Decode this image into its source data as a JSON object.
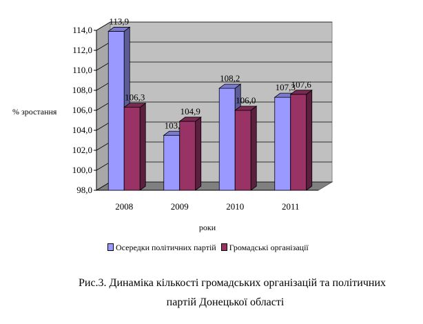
{
  "chart_data": {
    "type": "bar",
    "categories": [
      "2008",
      "2009",
      "2010",
      "2011"
    ],
    "series": [
      {
        "name": "Осередки політичних партій",
        "values": [
          113.9,
          103.5,
          108.2,
          107.3
        ],
        "labels": [
          "113,9",
          "103,5",
          "108,2",
          "107,3"
        ],
        "color": "#9999ff"
      },
      {
        "name": "Громадські організації",
        "values": [
          106.3,
          104.9,
          106.0,
          107.6
        ],
        "labels": [
          "106,3",
          "104,9",
          "106,0",
          "107,6"
        ],
        "color": "#993366"
      }
    ],
    "ylim": [
      98,
      114
    ],
    "yticks": [
      "98,0",
      "100,0",
      "102,0",
      "104,0",
      "106,0",
      "108,0",
      "110,0",
      "112,0",
      "114,0"
    ],
    "xlabel": "роки",
    "ylabel": "% зростання",
    "legend_position": "bottom",
    "grid": true,
    "three_d": true,
    "wall_color": "#c0c0c0"
  },
  "caption_line1": "Рис.3. Динаміка  кількості громадських організацій та політичних",
  "caption_line2": "партій Донецької області"
}
